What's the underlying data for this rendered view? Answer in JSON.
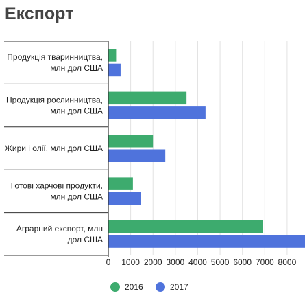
{
  "title": "Експорт",
  "chart_data": {
    "type": "bar",
    "orientation": "horizontal",
    "categories": [
      [
        "Продукція тваринництва,",
        "млн дол США"
      ],
      [
        "Продукція рослинництва,",
        "млн дол США"
      ],
      [
        "Жири і олії, млн дол США"
      ],
      [
        "Готові харчові продукти,",
        "млн дол США"
      ],
      [
        "Аграрний експорт, млн",
        "дол США"
      ]
    ],
    "series": [
      {
        "name": "2016",
        "color": "#3dab6e",
        "values": [
          350,
          3500,
          2000,
          1100,
          6900
        ]
      },
      {
        "name": "2017",
        "color": "#4f73dc",
        "values": [
          550,
          4350,
          2550,
          1450,
          8800
        ]
      }
    ],
    "xticks": [
      0,
      1000,
      2000,
      3000,
      4000,
      5000,
      6000,
      7000,
      8000
    ],
    "xlim": [
      0,
      8800
    ],
    "grid": "vertical",
    "legend_position": "bottom-center"
  }
}
